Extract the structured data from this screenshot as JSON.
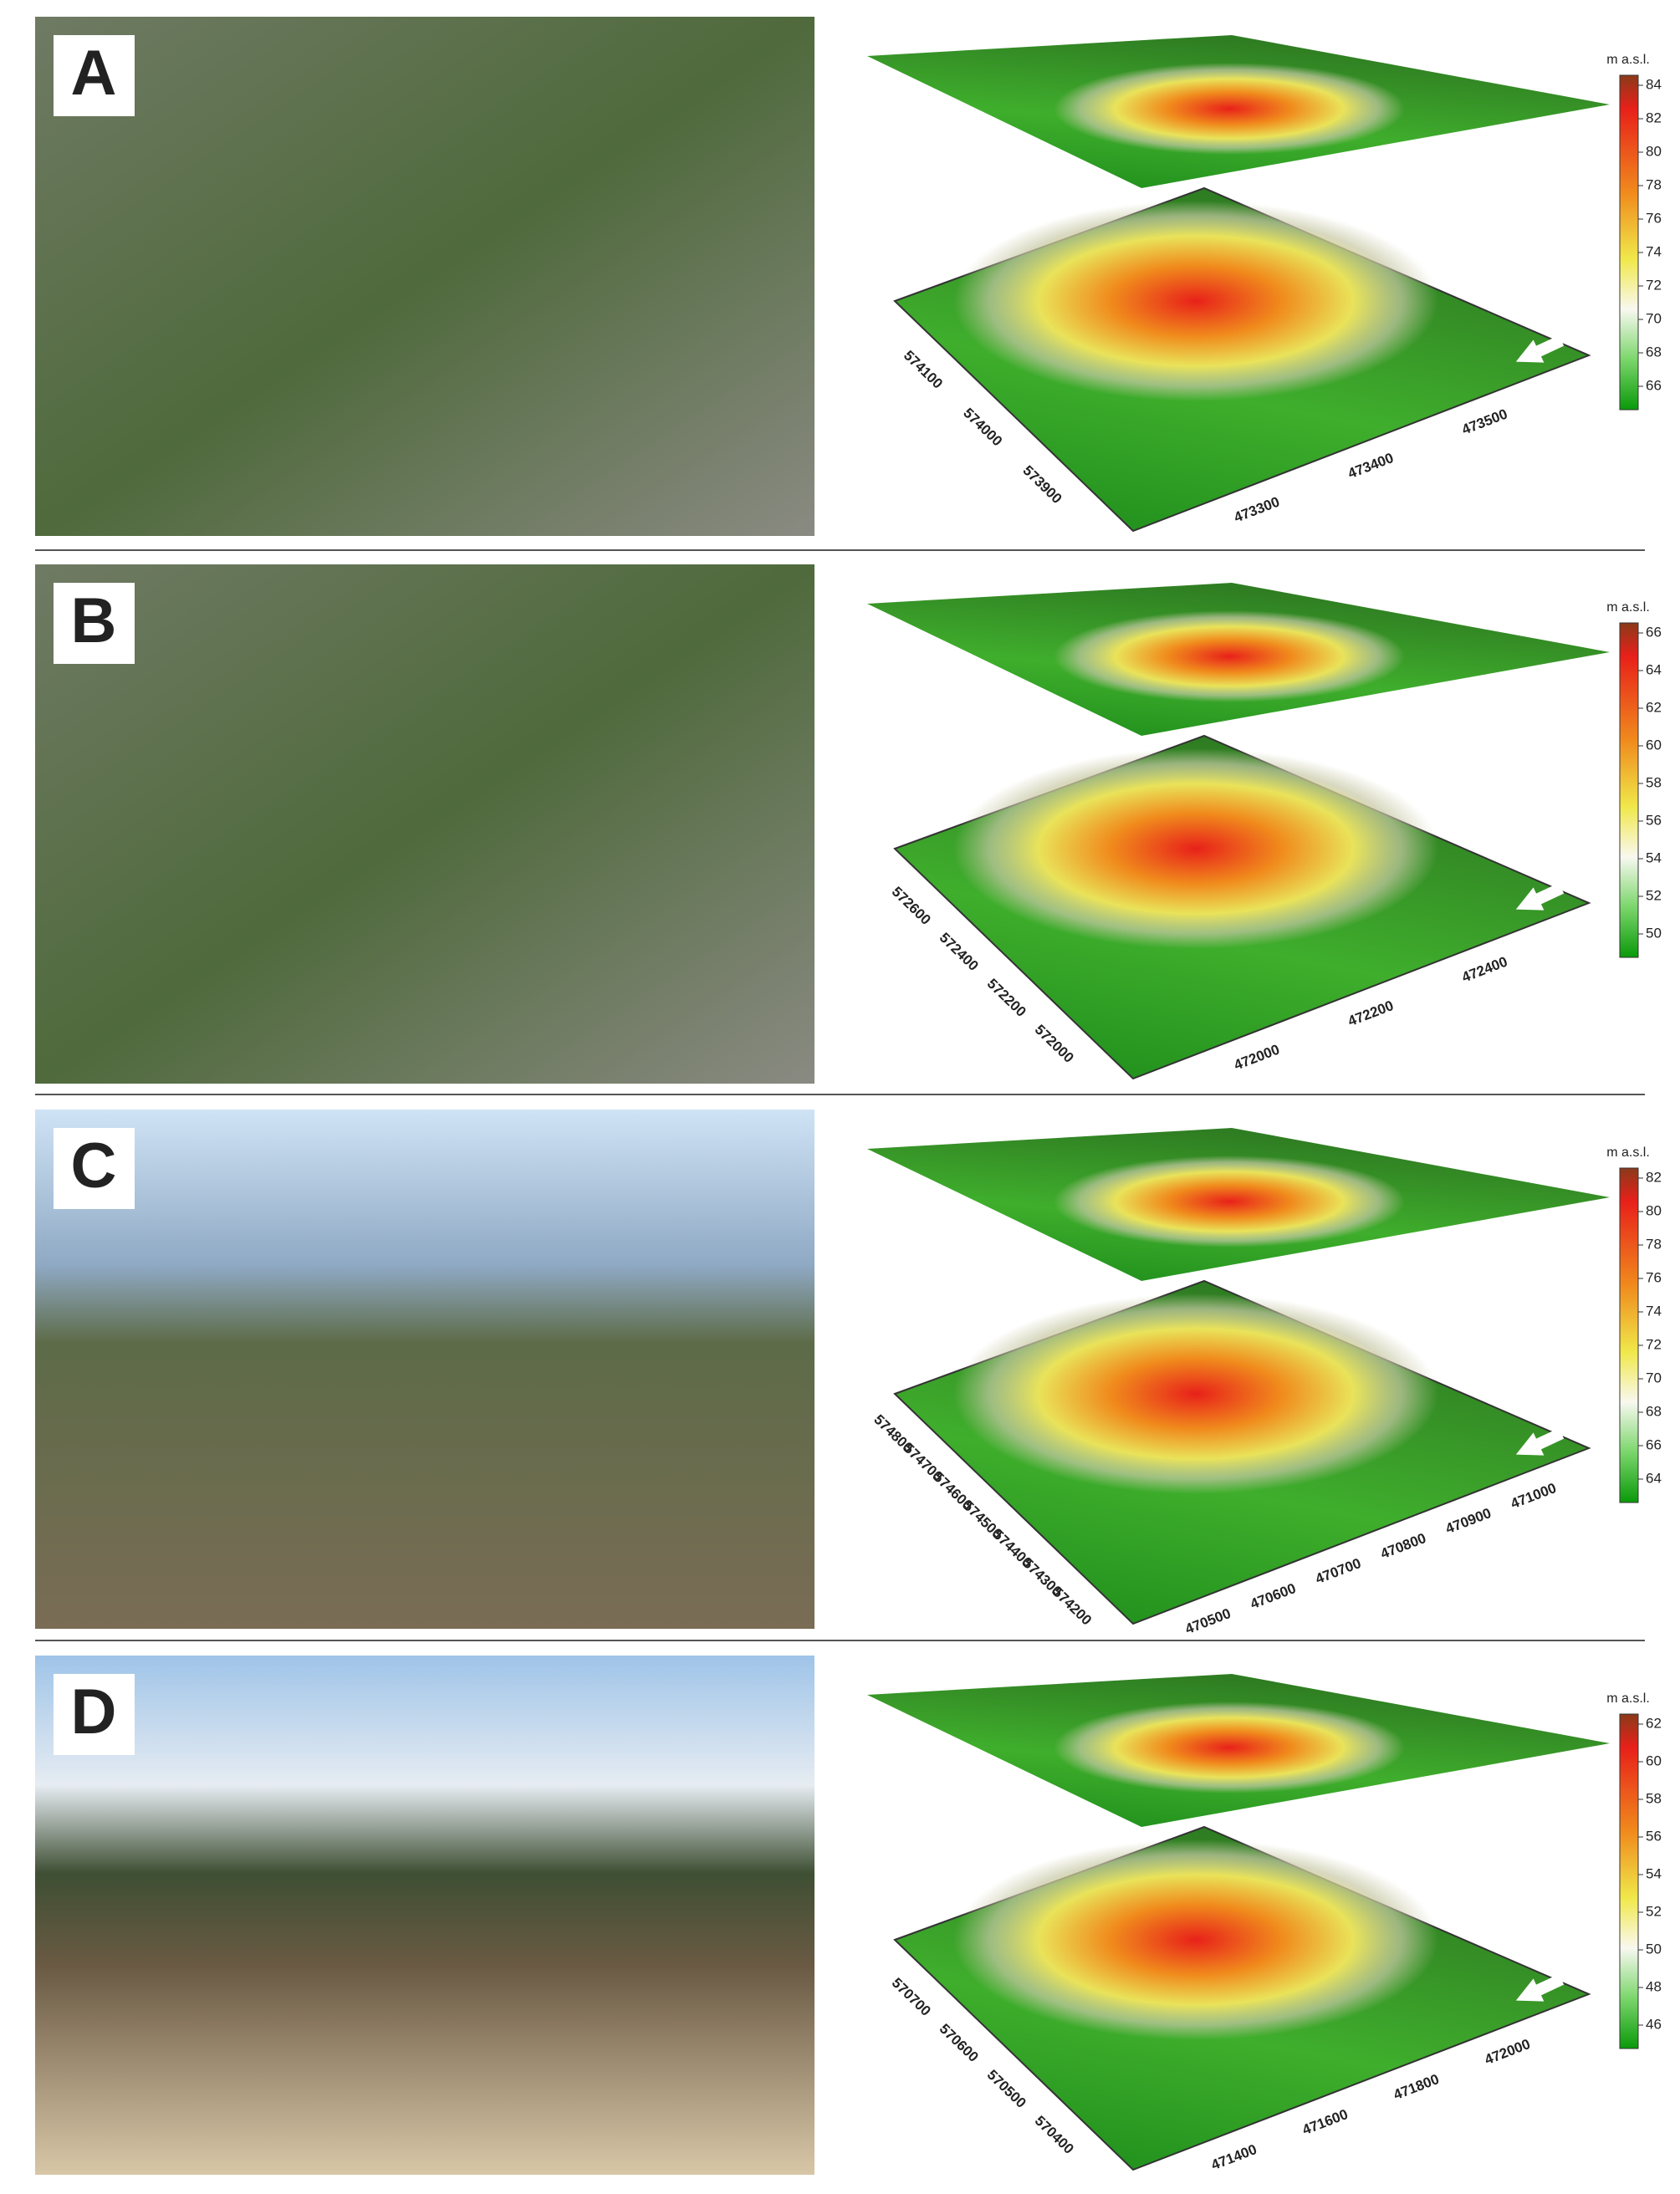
{
  "panels": [
    {
      "label": "A",
      "colorbar": {
        "title": "m a.s.l.",
        "ticks": [
          "84",
          "82",
          "80",
          "78",
          "76",
          "74",
          "72",
          "70",
          "68",
          "66"
        ]
      },
      "axis_left": [
        "574100",
        "574000",
        "573900"
      ],
      "axis_bottom": [
        "473300",
        "473400",
        "473500"
      ]
    },
    {
      "label": "B",
      "colorbar": {
        "title": "m a.s.l.",
        "ticks": [
          "66",
          "64",
          "62",
          "60",
          "58",
          "56",
          "54",
          "52",
          "50"
        ]
      },
      "axis_left": [
        "572600",
        "572400",
        "572200",
        "572000"
      ],
      "axis_bottom": [
        "472000",
        "472200",
        "472400"
      ]
    },
    {
      "label": "C",
      "colorbar": {
        "title": "m a.s.l.",
        "ticks": [
          "82",
          "80",
          "78",
          "76",
          "74",
          "72",
          "70",
          "68",
          "66",
          "64"
        ]
      },
      "axis_left": [
        "574800",
        "574700",
        "574600",
        "574500",
        "574400",
        "574300",
        "574200"
      ],
      "axis_bottom": [
        "470500",
        "470600",
        "470700",
        "470800",
        "470900",
        "471000"
      ]
    },
    {
      "label": "D",
      "colorbar": {
        "title": "m a.s.l.",
        "ticks": [
          "62",
          "60",
          "58",
          "56",
          "54",
          "52",
          "50",
          "48",
          "46"
        ]
      },
      "axis_left": [
        "570700",
        "570600",
        "570500",
        "570400"
      ],
      "axis_bottom": [
        "471400",
        "471600",
        "471800",
        "472000"
      ]
    }
  ]
}
